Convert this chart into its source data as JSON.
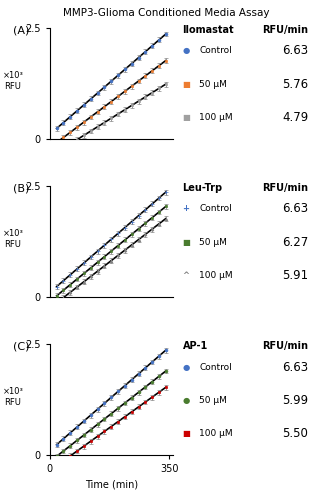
{
  "title": "MMP3-Glioma Conditioned Media Assay",
  "time_points": [
    20,
    40,
    60,
    80,
    100,
    120,
    140,
    160,
    180,
    200,
    220,
    240,
    260,
    280,
    300,
    320,
    340
  ],
  "panels": [
    {
      "label": "A",
      "compound": "Ilomastat",
      "series": [
        {
          "name": "Control",
          "slope": 6.63,
          "intercept": 100,
          "color": "#4472C4",
          "marker": "o",
          "ms": 2.0,
          "lw": 1.2
        },
        {
          "name": "50 μM",
          "slope": 5.76,
          "intercept": -200,
          "color": "#ED7D31",
          "marker": "s",
          "ms": 2.0,
          "lw": 1.2
        },
        {
          "name": "100 μM",
          "slope": 4.79,
          "intercept": -400,
          "color": "#A0A0A0",
          "marker": "s",
          "ms": 2.0,
          "lw": 1.2
        }
      ]
    },
    {
      "label": "B",
      "compound": "Leu-Trp",
      "series": [
        {
          "name": "Control",
          "slope": 6.63,
          "intercept": 100,
          "color": "#4472C4",
          "marker": "+",
          "ms": 3.0,
          "lw": 1.2
        },
        {
          "name": "50 μM",
          "slope": 6.27,
          "intercept": -100,
          "color": "#4A7C2F",
          "marker": "s",
          "ms": 2.0,
          "lw": 1.2
        },
        {
          "name": "100 μM",
          "slope": 5.91,
          "intercept": -250,
          "color": "#808080",
          "marker": "^",
          "ms": 2.0,
          "lw": 1.2
        }
      ]
    },
    {
      "label": "C",
      "compound": "AP-1",
      "series": [
        {
          "name": "Control",
          "slope": 6.63,
          "intercept": 100,
          "color": "#4472C4",
          "marker": "o",
          "ms": 2.0,
          "lw": 1.2
        },
        {
          "name": "50 μM",
          "slope": 5.99,
          "intercept": -150,
          "color": "#4A7C2F",
          "marker": "o",
          "ms": 2.0,
          "lw": 1.2
        },
        {
          "name": "100 μM",
          "slope": 5.5,
          "intercept": -350,
          "color": "#CC0000",
          "marker": "s",
          "ms": 2.0,
          "lw": 1.2
        }
      ]
    }
  ],
  "ylim": [
    0,
    2500
  ],
  "yticks": [
    0,
    2500
  ],
  "yticklabels": [
    "0",
    "2.5"
  ],
  "xlim": [
    0,
    360
  ],
  "xtick_vals": [
    0,
    350
  ],
  "legend_rfumin_col": "RFU/min",
  "xlabel": "Time (min)",
  "error_bar_size": 55,
  "title_fontsize": 7.5,
  "tick_fontsize": 7,
  "label_fontsize": 7,
  "legend_fontsize": 7,
  "rfumin_fontsize": 8.5
}
